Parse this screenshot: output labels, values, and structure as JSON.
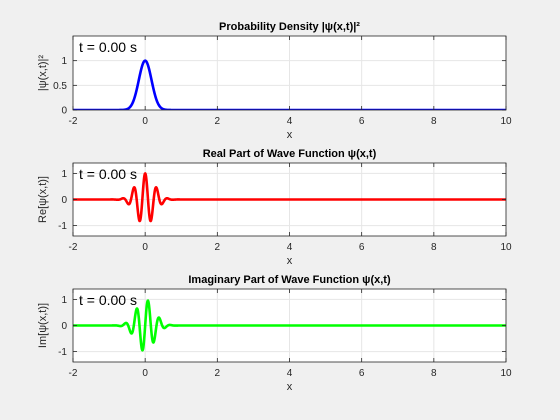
{
  "figure": {
    "background": "#f0f0f0"
  },
  "chart_data": [
    {
      "type": "line",
      "title": "Probability Density |ψ(x,t)|²",
      "xlabel": "x",
      "ylabel": "|ψ(x,t)|²",
      "xlim": [
        -2,
        10
      ],
      "ylim": [
        0,
        1.5
      ],
      "xticks": [
        -2,
        0,
        2,
        4,
        6,
        8,
        10
      ],
      "yticks": [
        0,
        0.5,
        1
      ],
      "ytick_labels": [
        "0",
        "0.5",
        "1"
      ],
      "grid": true,
      "annotation": "t = 0.00 s",
      "series": [
        {
          "color": "#0000ff",
          "function": "gaussian_density",
          "center": 0,
          "width": 0.25,
          "peak": 1
        }
      ]
    },
    {
      "type": "line",
      "title": "Real Part of Wave Function ψ(x,t)",
      "xlabel": "x",
      "ylabel": "Re[ψ(x,t)]",
      "xlim": [
        -2,
        10
      ],
      "ylim": [
        -1.4,
        1.4
      ],
      "xticks": [
        -2,
        0,
        2,
        4,
        6,
        8,
        10
      ],
      "yticks": [
        -1,
        0,
        1
      ],
      "ytick_labels": [
        "-1",
        "0",
        "1"
      ],
      "grid": true,
      "annotation": "t = 0.00 s",
      "series": [
        {
          "color": "#ff0000",
          "function": "wave_packet_real",
          "center": 0,
          "width": 0.25,
          "wavenumber": 20,
          "peak": 1
        }
      ]
    },
    {
      "type": "line",
      "title": "Imaginary Part of Wave Function ψ(x,t)",
      "xlabel": "x",
      "ylabel": "Im[ψ(x,t)]",
      "xlim": [
        -2,
        10
      ],
      "ylim": [
        -1.4,
        1.4
      ],
      "xticks": [
        -2,
        0,
        2,
        4,
        6,
        8,
        10
      ],
      "yticks": [
        -1,
        0,
        1
      ],
      "ytick_labels": [
        "-1",
        "0",
        "1"
      ],
      "grid": true,
      "annotation": "t = 0.00 s",
      "series": [
        {
          "color": "#00ff00",
          "function": "wave_packet_imag",
          "center": 0,
          "width": 0.25,
          "wavenumber": 20,
          "peak": 1
        }
      ]
    }
  ]
}
